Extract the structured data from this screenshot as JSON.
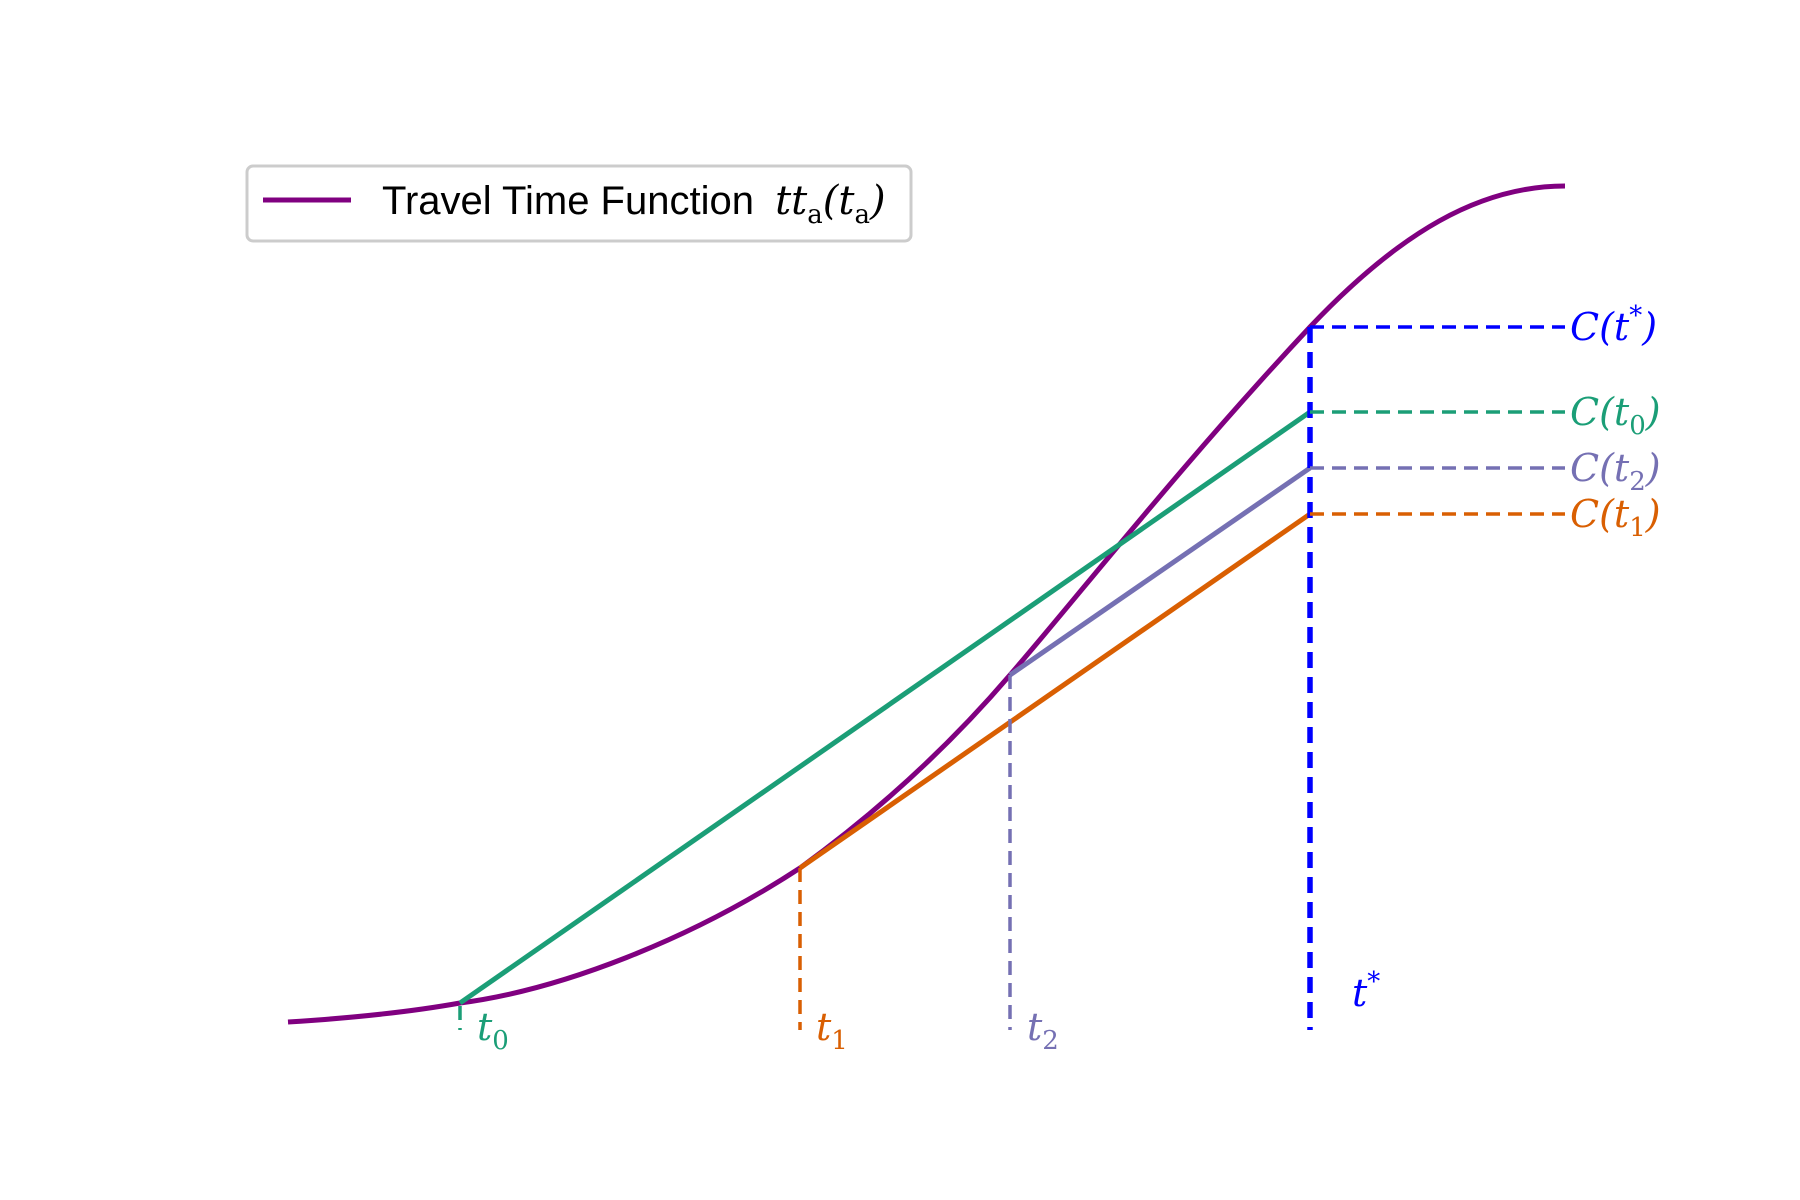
{
  "legend": {
    "label": "Travel Time Function",
    "math_main": "tt",
    "math_sub": "a",
    "math_arg_main": "t",
    "math_arg_sub": "a",
    "color": "#800080"
  },
  "colors": {
    "curve": "#800080",
    "t0": "#1b9e77",
    "t1": "#d95f02",
    "t2": "#7570b3",
    "tstar": "#0000ff"
  },
  "x_labels": [
    {
      "id": "t0",
      "main": "t",
      "sub": "0",
      "color": "#1b9e77"
    },
    {
      "id": "t1",
      "main": "t",
      "sub": "1",
      "color": "#d95f02"
    },
    {
      "id": "t2",
      "main": "t",
      "sub": "2",
      "color": "#7570b3"
    },
    {
      "id": "tstar",
      "main": "t",
      "sup": "*",
      "color": "#0000ff"
    }
  ],
  "y_labels": [
    {
      "id": "Ctstar",
      "prefix": "C(",
      "main": "t",
      "sup": "*",
      "suffix": ")",
      "color": "#0000ff"
    },
    {
      "id": "Ct0",
      "prefix": "C(",
      "main": "t",
      "sub": "0",
      "suffix": ")",
      "color": "#1b9e77"
    },
    {
      "id": "Ct2",
      "prefix": "C(",
      "main": "t",
      "sub": "2",
      "suffix": ")",
      "color": "#7570b3"
    },
    {
      "id": "Ct1",
      "prefix": "C(",
      "main": "t",
      "sub": "1",
      "suffix": ")",
      "color": "#d95f02"
    }
  ]
}
